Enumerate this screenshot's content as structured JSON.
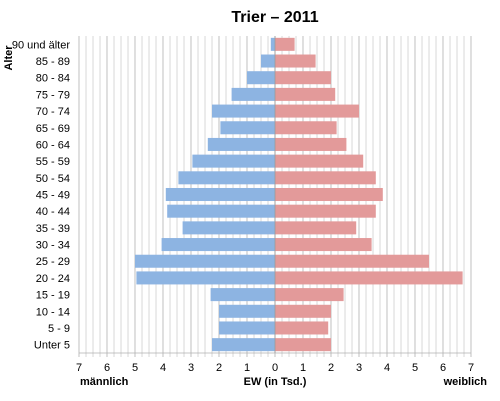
{
  "chart_data": {
    "type": "bar",
    "orientation": "horizontal",
    "title": "Trier – 2011",
    "ylabel": "Alter",
    "xlabel": "EW (in Tsd.)",
    "xlabel_left": "männlich",
    "xlabel_right": "weiblich",
    "xlim": [
      -7,
      7
    ],
    "x_ticks": [
      7,
      6,
      5,
      4,
      3,
      2,
      1,
      0,
      1,
      2,
      3,
      4,
      5,
      6,
      7
    ],
    "grid": true,
    "colors": {
      "male": "#8db4e2",
      "female": "#e39a9a",
      "grid": "#b0b0b0"
    },
    "categories": [
      "90 und älter",
      "85 - 89",
      "80 - 84",
      "75 - 79",
      "70 - 74",
      "65 - 69",
      "60 - 64",
      "55 - 59",
      "50 - 54",
      "45 - 49",
      "40 - 44",
      "35 - 39",
      "30 - 34",
      "25 - 29",
      "20 - 24",
      "15 - 19",
      "10 - 14",
      "5 - 9",
      "Unter 5"
    ],
    "series": [
      {
        "key": "male",
        "values": [
          0.15,
          0.5,
          1.0,
          1.55,
          2.25,
          1.95,
          2.4,
          2.95,
          3.45,
          3.9,
          3.85,
          3.3,
          4.05,
          5.0,
          4.95,
          2.3,
          2.0,
          2.0,
          2.25
        ]
      },
      {
        "key": "female",
        "values": [
          0.7,
          1.45,
          2.0,
          2.15,
          3.0,
          2.2,
          2.55,
          3.15,
          3.6,
          3.85,
          3.6,
          2.9,
          3.45,
          5.5,
          6.7,
          2.45,
          2.0,
          1.9,
          2.0
        ]
      }
    ]
  }
}
